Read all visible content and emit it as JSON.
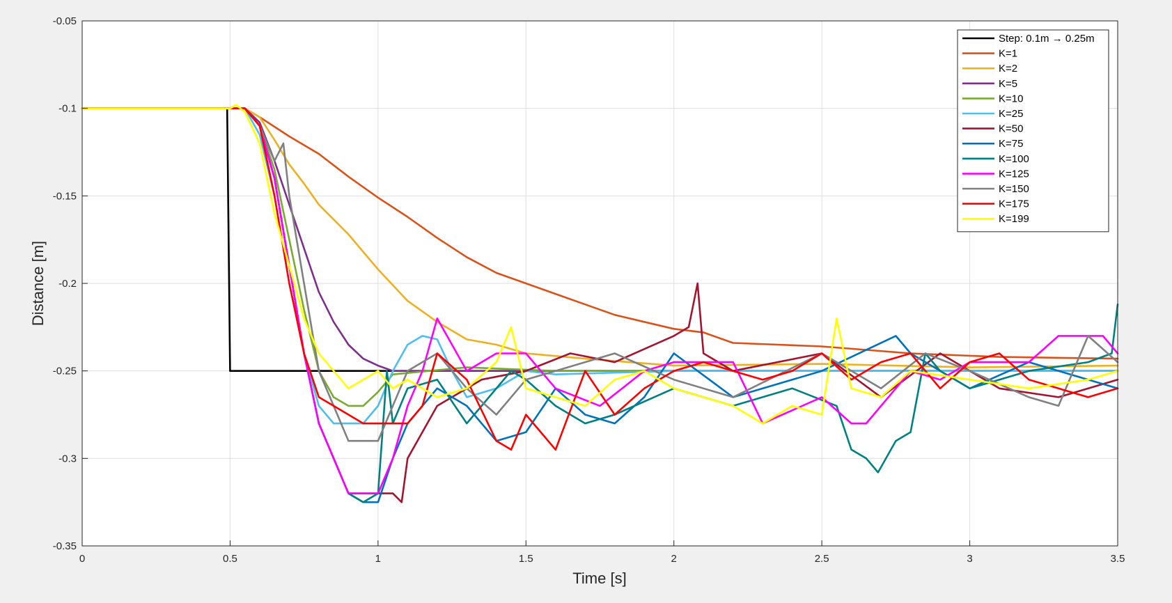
{
  "chart_data": {
    "type": "line",
    "title": "",
    "xlabel": "Time [s]",
    "ylabel": "Distance [m]",
    "xlim": [
      0,
      3.5
    ],
    "ylim": [
      -0.35,
      -0.05
    ],
    "xticks": [
      0,
      0.5,
      1,
      1.5,
      2,
      2.5,
      3,
      3.5
    ],
    "xtick_labels": [
      "0",
      "0.5",
      "1",
      "1.5",
      "2",
      "2.5",
      "3",
      "3.5"
    ],
    "yticks": [
      -0.35,
      -0.3,
      -0.25,
      -0.2,
      -0.15,
      -0.1,
      -0.05
    ],
    "ytick_labels": [
      "-0.35",
      "-0.3",
      "-0.25",
      "-0.2",
      "-0.15",
      "-0.1",
      "-0.05"
    ],
    "grid": true,
    "legend_position": "top-right",
    "series": [
      {
        "name": "Step: 0.1m → 0.25m",
        "color": "#000000",
        "x": [
          0,
          0.49,
          0.5,
          3.5
        ],
        "y": [
          -0.1,
          -0.1,
          -0.25,
          -0.25
        ]
      },
      {
        "name": "K=1",
        "color": "#d95319",
        "x": [
          0,
          0.5,
          0.55,
          0.6,
          0.7,
          0.8,
          0.9,
          1.0,
          1.1,
          1.2,
          1.3,
          1.4,
          1.5,
          1.6,
          1.7,
          1.8,
          1.9,
          2.0,
          2.1,
          2.2,
          2.5,
          2.8,
          3.1,
          3.5
        ],
        "y": [
          -0.1,
          -0.1,
          -0.1,
          -0.105,
          -0.116,
          -0.126,
          -0.139,
          -0.151,
          -0.162,
          -0.174,
          -0.185,
          -0.194,
          -0.2,
          -0.206,
          -0.212,
          -0.218,
          -0.222,
          -0.226,
          -0.228,
          -0.234,
          -0.236,
          -0.24,
          -0.242,
          -0.243
        ]
      },
      {
        "name": "K=2",
        "color": "#edb120",
        "x": [
          0,
          0.55,
          0.6,
          0.65,
          0.7,
          0.75,
          0.8,
          0.9,
          1.0,
          1.1,
          1.2,
          1.3,
          1.4,
          1.5,
          1.7,
          2.0,
          2.5,
          3.0,
          3.5
        ],
        "y": [
          -0.1,
          -0.1,
          -0.105,
          -0.118,
          -0.132,
          -0.143,
          -0.155,
          -0.172,
          -0.192,
          -0.21,
          -0.222,
          -0.232,
          -0.235,
          -0.24,
          -0.243,
          -0.247,
          -0.246,
          -0.248,
          -0.247
        ]
      },
      {
        "name": "K=5",
        "color": "#7e2f8e",
        "x": [
          0,
          0.55,
          0.6,
          0.65,
          0.7,
          0.75,
          0.8,
          0.85,
          0.9,
          0.95,
          1.0,
          1.05,
          1.2,
          1.5,
          2.0,
          2.5,
          3.0,
          3.5
        ],
        "y": [
          -0.1,
          -0.1,
          -0.108,
          -0.13,
          -0.155,
          -0.18,
          -0.205,
          -0.222,
          -0.235,
          -0.243,
          -0.247,
          -0.25,
          -0.25,
          -0.25,
          -0.25,
          -0.25,
          -0.25,
          -0.25
        ]
      },
      {
        "name": "K=10",
        "color": "#77ac30",
        "x": [
          0,
          0.55,
          0.6,
          0.65,
          0.7,
          0.75,
          0.8,
          0.85,
          0.9,
          0.95,
          1.0,
          1.05,
          1.3,
          1.6,
          2.0,
          2.5,
          3.0,
          3.5
        ],
        "y": [
          -0.1,
          -0.1,
          -0.11,
          -0.135,
          -0.175,
          -0.215,
          -0.25,
          -0.265,
          -0.27,
          -0.27,
          -0.262,
          -0.252,
          -0.248,
          -0.25,
          -0.25,
          -0.25,
          -0.25,
          -0.25
        ]
      },
      {
        "name": "K=25",
        "color": "#4dbeee",
        "x": [
          0,
          0.55,
          0.6,
          0.65,
          0.7,
          0.75,
          0.8,
          0.85,
          0.9,
          0.95,
          1.0,
          1.05,
          1.1,
          1.15,
          1.2,
          1.25,
          1.3,
          1.4,
          1.5,
          1.6,
          2.0,
          2.5,
          3.0,
          3.5
        ],
        "y": [
          -0.1,
          -0.1,
          -0.115,
          -0.15,
          -0.2,
          -0.24,
          -0.27,
          -0.28,
          -0.28,
          -0.28,
          -0.27,
          -0.25,
          -0.235,
          -0.23,
          -0.232,
          -0.25,
          -0.265,
          -0.26,
          -0.25,
          -0.252,
          -0.25,
          -0.25,
          -0.25,
          -0.25
        ]
      },
      {
        "name": "K=50",
        "color": "#a2142f",
        "x": [
          0,
          0.55,
          0.6,
          0.65,
          0.7,
          0.75,
          0.8,
          0.85,
          0.9,
          0.95,
          1.0,
          1.05,
          1.08,
          1.1,
          1.2,
          1.35,
          1.5,
          1.65,
          1.8,
          2.0,
          2.05,
          2.08,
          2.1,
          2.2,
          2.5,
          2.7,
          2.9,
          3.1,
          3.3,
          3.5
        ],
        "y": [
          -0.1,
          -0.1,
          -0.11,
          -0.14,
          -0.19,
          -0.24,
          -0.28,
          -0.3,
          -0.32,
          -0.32,
          -0.32,
          -0.32,
          -0.325,
          -0.3,
          -0.27,
          -0.255,
          -0.25,
          -0.24,
          -0.245,
          -0.23,
          -0.225,
          -0.2,
          -0.24,
          -0.25,
          -0.24,
          -0.265,
          -0.24,
          -0.26,
          -0.265,
          -0.255
        ]
      },
      {
        "name": "K=75",
        "color": "#0072bd",
        "x": [
          0,
          0.55,
          0.6,
          0.65,
          0.7,
          0.75,
          0.8,
          0.85,
          0.9,
          0.95,
          1.0,
          1.05,
          1.1,
          1.2,
          1.3,
          1.4,
          1.5,
          1.6,
          1.7,
          1.8,
          1.9,
          2.0,
          2.2,
          2.5,
          2.75,
          2.8,
          3.0,
          3.2,
          3.5
        ],
        "y": [
          -0.1,
          -0.1,
          -0.11,
          -0.14,
          -0.19,
          -0.24,
          -0.28,
          -0.3,
          -0.32,
          -0.325,
          -0.325,
          -0.3,
          -0.28,
          -0.26,
          -0.27,
          -0.29,
          -0.285,
          -0.26,
          -0.275,
          -0.28,
          -0.265,
          -0.24,
          -0.265,
          -0.25,
          -0.23,
          -0.24,
          -0.26,
          -0.245,
          -0.26
        ]
      },
      {
        "name": "K=100",
        "color": "#008080",
        "x": [
          0,
          0.55,
          0.6,
          0.65,
          0.7,
          0.75,
          0.8,
          0.85,
          0.9,
          0.95,
          1.0,
          1.03,
          1.05,
          1.1,
          1.2,
          1.3,
          1.45,
          1.5,
          1.6,
          1.7,
          1.8,
          2.0,
          2.2,
          2.4,
          2.55,
          2.6,
          2.65,
          2.69,
          2.75,
          2.8,
          2.85,
          2.9,
          3.0,
          3.2,
          3.4,
          3.48,
          3.5
        ],
        "y": [
          -0.1,
          -0.1,
          -0.11,
          -0.14,
          -0.19,
          -0.24,
          -0.28,
          -0.3,
          -0.32,
          -0.325,
          -0.32,
          -0.25,
          -0.28,
          -0.26,
          -0.255,
          -0.28,
          -0.25,
          -0.255,
          -0.27,
          -0.28,
          -0.275,
          -0.26,
          -0.27,
          -0.26,
          -0.27,
          -0.295,
          -0.3,
          -0.308,
          -0.29,
          -0.285,
          -0.24,
          -0.25,
          -0.26,
          -0.25,
          -0.245,
          -0.24,
          -0.212
        ]
      },
      {
        "name": "K=125",
        "color": "#ff00ff",
        "x": [
          0,
          0.55,
          0.6,
          0.65,
          0.7,
          0.75,
          0.8,
          0.85,
          0.9,
          0.95,
          1.0,
          1.05,
          1.1,
          1.15,
          1.2,
          1.3,
          1.4,
          1.5,
          1.6,
          1.75,
          1.9,
          2.0,
          2.2,
          2.3,
          2.5,
          2.6,
          2.65,
          2.8,
          2.9,
          3.0,
          3.2,
          3.3,
          3.45,
          3.5
        ],
        "y": [
          -0.1,
          -0.1,
          -0.11,
          -0.14,
          -0.19,
          -0.24,
          -0.28,
          -0.3,
          -0.32,
          -0.32,
          -0.32,
          -0.3,
          -0.27,
          -0.25,
          -0.22,
          -0.25,
          -0.24,
          -0.24,
          -0.26,
          -0.27,
          -0.25,
          -0.245,
          -0.245,
          -0.28,
          -0.265,
          -0.28,
          -0.28,
          -0.25,
          -0.255,
          -0.245,
          -0.245,
          -0.23,
          -0.23,
          -0.24
        ]
      },
      {
        "name": "K=150",
        "color": "#808080",
        "x": [
          0,
          0.55,
          0.6,
          0.65,
          0.68,
          0.7,
          0.75,
          0.8,
          0.85,
          0.9,
          0.95,
          1.0,
          1.05,
          1.1,
          1.2,
          1.3,
          1.4,
          1.5,
          1.6,
          1.8,
          2.0,
          2.2,
          2.5,
          2.7,
          2.85,
          3.0,
          3.2,
          3.3,
          3.4,
          3.5
        ],
        "y": [
          -0.1,
          -0.1,
          -0.11,
          -0.13,
          -0.12,
          -0.15,
          -0.2,
          -0.25,
          -0.27,
          -0.29,
          -0.29,
          -0.29,
          -0.27,
          -0.25,
          -0.24,
          -0.26,
          -0.275,
          -0.255,
          -0.25,
          -0.24,
          -0.255,
          -0.265,
          -0.24,
          -0.26,
          -0.24,
          -0.25,
          -0.265,
          -0.27,
          -0.23,
          -0.245
        ]
      },
      {
        "name": "K=175",
        "color": "#ff0000",
        "x": [
          0,
          0.55,
          0.6,
          0.65,
          0.7,
          0.75,
          0.8,
          0.85,
          0.9,
          0.95,
          1.0,
          1.05,
          1.1,
          1.15,
          1.2,
          1.3,
          1.4,
          1.45,
          1.5,
          1.55,
          1.6,
          1.7,
          1.8,
          1.9,
          2.0,
          2.1,
          2.2,
          2.3,
          2.4,
          2.5,
          2.6,
          2.7,
          2.8,
          2.9,
          3.0,
          3.1,
          3.2,
          3.3,
          3.4,
          3.5
        ],
        "y": [
          -0.1,
          -0.1,
          -0.11,
          -0.15,
          -0.2,
          -0.24,
          -0.265,
          -0.27,
          -0.275,
          -0.28,
          -0.28,
          -0.28,
          -0.28,
          -0.27,
          -0.24,
          -0.255,
          -0.29,
          -0.295,
          -0.275,
          -0.285,
          -0.295,
          -0.25,
          -0.275,
          -0.26,
          -0.25,
          -0.245,
          -0.25,
          -0.255,
          -0.25,
          -0.24,
          -0.255,
          -0.245,
          -0.24,
          -0.26,
          -0.245,
          -0.24,
          -0.255,
          -0.26,
          -0.265,
          -0.26
        ]
      },
      {
        "name": "K=199",
        "color": "#ffff00",
        "x": [
          0,
          0.5,
          0.52,
          0.55,
          0.6,
          0.65,
          0.7,
          0.75,
          0.8,
          0.85,
          0.9,
          0.95,
          1.0,
          1.05,
          1.1,
          1.2,
          1.3,
          1.4,
          1.45,
          1.5,
          1.6,
          1.7,
          1.8,
          1.9,
          2.0,
          2.1,
          2.2,
          2.3,
          2.4,
          2.5,
          2.55,
          2.6,
          2.7,
          2.8,
          3.0,
          3.2,
          3.4,
          3.5
        ],
        "y": [
          -0.1,
          -0.1,
          -0.098,
          -0.102,
          -0.12,
          -0.16,
          -0.19,
          -0.22,
          -0.24,
          -0.25,
          -0.26,
          -0.255,
          -0.25,
          -0.26,
          -0.255,
          -0.265,
          -0.26,
          -0.245,
          -0.225,
          -0.26,
          -0.265,
          -0.27,
          -0.255,
          -0.25,
          -0.26,
          -0.265,
          -0.27,
          -0.28,
          -0.27,
          -0.275,
          -0.22,
          -0.26,
          -0.265,
          -0.25,
          -0.255,
          -0.26,
          -0.255,
          -0.25
        ]
      }
    ]
  }
}
